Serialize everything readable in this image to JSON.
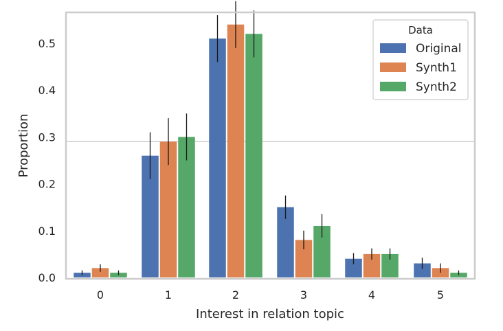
{
  "chart_data": {
    "type": "bar",
    "categories": [
      "0",
      "1",
      "2",
      "3",
      "4",
      "5"
    ],
    "series": [
      {
        "name": "Original",
        "values": [
          0.01,
          0.26,
          0.51,
          0.15,
          0.04,
          0.03
        ],
        "err_low": [
          0.005,
          0.21,
          0.46,
          0.125,
          0.028,
          0.018
        ],
        "err_high": [
          0.015,
          0.31,
          0.56,
          0.175,
          0.052,
          0.042
        ],
        "color": "#4c72b0"
      },
      {
        "name": "Synth1",
        "values": [
          0.02,
          0.29,
          0.54,
          0.08,
          0.05,
          0.02
        ],
        "err_low": [
          0.012,
          0.24,
          0.49,
          0.06,
          0.038,
          0.01
        ],
        "err_high": [
          0.028,
          0.34,
          0.59,
          0.1,
          0.062,
          0.03
        ],
        "color": "#dd8452"
      },
      {
        "name": "Synth2",
        "values": [
          0.01,
          0.3,
          0.52,
          0.11,
          0.05,
          0.01
        ],
        "err_low": [
          0.005,
          0.25,
          0.47,
          0.085,
          0.038,
          0.005
        ],
        "err_high": [
          0.015,
          0.35,
          0.57,
          0.135,
          0.062,
          0.015
        ],
        "color": "#55a868"
      }
    ],
    "xlabel": "Interest in relation topic",
    "ylabel": "Proportion",
    "yticks": [
      "0.0",
      "0.1",
      "0.2",
      "0.3",
      "0.4",
      "0.5"
    ],
    "ylim": [
      0,
      0.57
    ],
    "legend": {
      "title": "Data",
      "placement": "top-right"
    },
    "grid": "horizontal line at 0.29"
  }
}
